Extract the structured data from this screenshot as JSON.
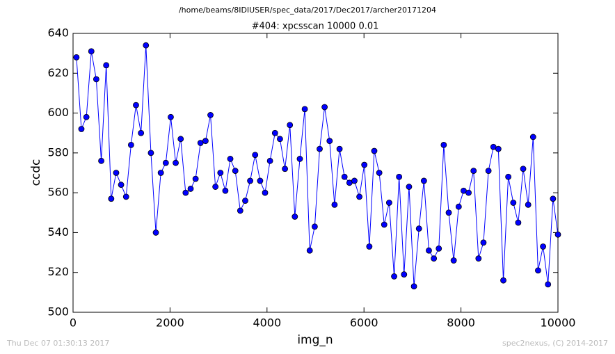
{
  "chart_data": {
    "type": "line",
    "suptitle": "/home/beams/8IDIUSER/spec_data/2017/Dec2017/archer20171204",
    "title": "#404: xpcsscan 10000 0.01",
    "x_label": "img_n",
    "y_label": "ccdc",
    "footer_left": "Thu Dec 07 01:30:13 2017",
    "footer_right": "spec2nexus, (C) 2014-2017",
    "x": [
      70,
      172,
      275,
      377,
      479,
      582,
      684,
      787,
      889,
      991,
      1094,
      1196,
      1298,
      1401,
      1503,
      1606,
      1708,
      1810,
      1913,
      2015,
      2117,
      2220,
      2322,
      2425,
      2527,
      2629,
      2732,
      2834,
      2936,
      3039,
      3141,
      3243,
      3346,
      3448,
      3551,
      3653,
      3755,
      3858,
      3960,
      4062,
      4165,
      4267,
      4370,
      4472,
      4574,
      4677,
      4779,
      4881,
      4984,
      5086,
      5188,
      5291,
      5393,
      5496,
      5598,
      5700,
      5803,
      5905,
      6007,
      6110,
      6212,
      6315,
      6417,
      6519,
      6622,
      6724,
      6826,
      6929,
      7031,
      7134,
      7236,
      7338,
      7441,
      7543,
      7645,
      7748,
      7850,
      7953,
      8055,
      8157,
      8260,
      8362,
      8464,
      8567,
      8669,
      8771,
      8874,
      8976,
      9079,
      9181,
      9283,
      9386,
      9488,
      9590,
      9693,
      9795,
      9898,
      10000
    ],
    "series": [
      {
        "name": "ccdc",
        "color": "#0000ff",
        "marker_color": "#0000ff",
        "values": [
          628,
          592,
          598,
          631,
          617,
          576,
          624,
          557,
          570,
          564,
          558,
          584,
          604,
          590,
          634,
          580,
          540,
          570,
          575,
          598,
          575,
          587,
          560,
          562,
          567,
          585,
          586,
          599,
          563,
          570,
          561,
          577,
          571,
          551,
          556,
          566,
          579,
          566,
          560,
          576,
          590,
          587,
          572,
          594,
          548,
          577,
          602,
          531,
          543,
          582,
          603,
          586,
          554,
          582,
          568,
          565,
          566,
          558,
          574,
          533,
          581,
          570,
          544,
          555,
          518,
          568,
          519,
          563,
          513,
          542,
          566,
          531,
          527,
          532,
          584,
          550,
          526,
          553,
          561,
          560,
          571,
          527,
          535,
          571,
          583,
          582,
          516,
          568,
          555,
          545,
          572,
          554,
          588,
          521,
          533,
          514,
          557,
          539
        ]
      }
    ],
    "xlim": [
      0,
      10000
    ],
    "xticks": [
      0,
      2000,
      4000,
      6000,
      8000,
      10000
    ],
    "ylim": [
      500,
      640
    ],
    "yticks": [
      500,
      520,
      540,
      560,
      580,
      600,
      620,
      640
    ],
    "grid": false
  }
}
